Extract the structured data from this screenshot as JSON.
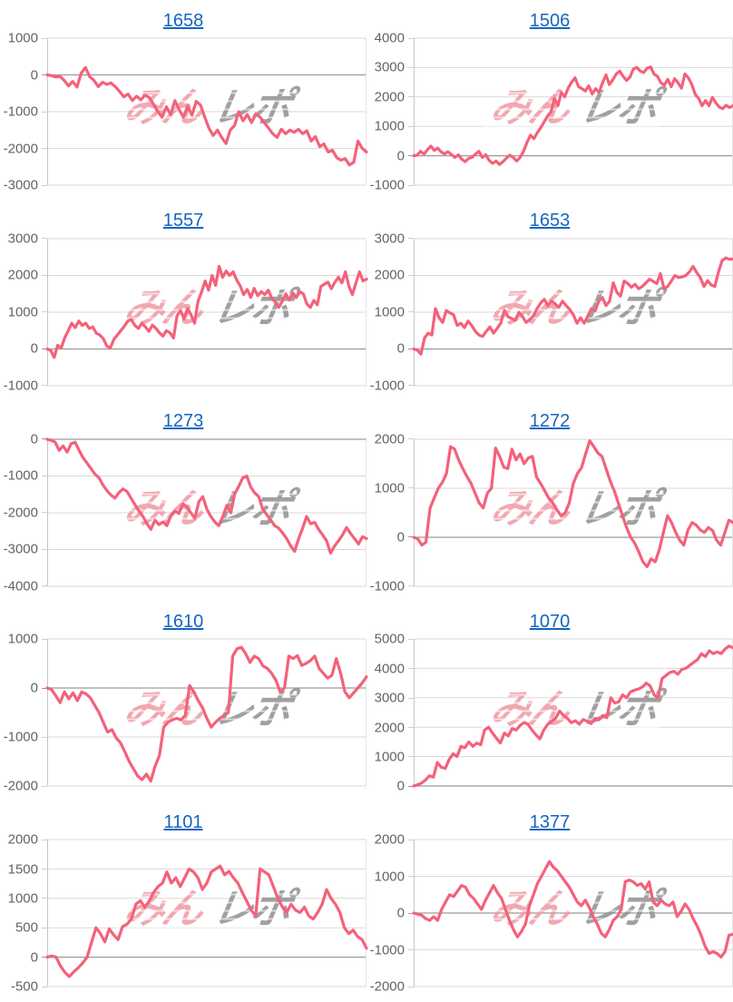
{
  "watermark": {
    "pink_text": "みん",
    "gray_text": "レポ"
  },
  "style": {
    "line_color": "#F4617A",
    "title_color": "#1565C0",
    "axis_text_color": "#646464",
    "grid_color": "#D9D9D9",
    "zero_line_color": "#9A9A9A",
    "axis_line_color": "#C7C7C7",
    "right_border_color": "#E4E4E4"
  },
  "chart_data": [
    {
      "type": "line",
      "title": "1658",
      "ylim": [
        -3000,
        1000
      ],
      "yticks": [
        1000,
        0,
        -1000,
        -2000,
        -3000
      ],
      "values": [
        0,
        -20,
        -60,
        -40,
        -150,
        -300,
        -180,
        -330,
        50,
        200,
        -50,
        -150,
        -320,
        -200,
        -260,
        -220,
        -320,
        -450,
        -600,
        -520,
        -700,
        -580,
        -680,
        -550,
        -620,
        -800,
        -1000,
        -1150,
        -870,
        -1080,
        -700,
        -950,
        -1150,
        -850,
        -1100,
        -720,
        -820,
        -1150,
        -1450,
        -1650,
        -1500,
        -1700,
        -1870,
        -1500,
        -1380,
        -1000,
        -1250,
        -1080,
        -1300,
        -1060,
        -1150,
        -1300,
        -1450,
        -1600,
        -1700,
        -1480,
        -1600,
        -1500,
        -1560,
        -1480,
        -1600,
        -1520,
        -1800,
        -1680,
        -1950,
        -1880,
        -2100,
        -2050,
        -2250,
        -2320,
        -2280,
        -2450,
        -2380,
        -1800,
        -2000,
        -2100
      ]
    },
    {
      "type": "line",
      "title": "1506",
      "ylim": [
        -1000,
        4000
      ],
      "yticks": [
        4000,
        3000,
        2000,
        1000,
        0,
        -1000
      ],
      "values": [
        0,
        20,
        150,
        60,
        200,
        330,
        180,
        260,
        130,
        60,
        140,
        40,
        -60,
        30,
        -120,
        -200,
        -90,
        -60,
        60,
        150,
        -60,
        30,
        -160,
        -260,
        -180,
        -300,
        -200,
        -80,
        20,
        -60,
        -180,
        -60,
        150,
        450,
        700,
        580,
        780,
        950,
        1150,
        1350,
        1500,
        1950,
        1700,
        2150,
        2000,
        2300,
        2500,
        2650,
        2350,
        2280,
        2200,
        2380,
        2100,
        2280,
        2150,
        2480,
        2750,
        2420,
        2580,
        2780,
        2880,
        2700,
        2560,
        2680,
        2950,
        3000,
        2880,
        2830,
        2980,
        3020,
        2780,
        2700,
        2480,
        2400,
        2600,
        2350,
        2620,
        2480,
        2300,
        2780,
        2650,
        2420,
        2080,
        1950,
        1700,
        1880,
        1700,
        1980,
        1800,
        1650,
        1600,
        1720,
        1640,
        1700
      ]
    },
    {
      "type": "line",
      "title": "1557",
      "ylim": [
        -1000,
        3000
      ],
      "yticks": [
        3000,
        2000,
        1000,
        0,
        -1000
      ],
      "values": [
        0,
        -40,
        -230,
        100,
        30,
        300,
        500,
        700,
        580,
        760,
        640,
        700,
        560,
        600,
        430,
        380,
        280,
        80,
        30,
        260,
        380,
        500,
        620,
        760,
        800,
        640,
        560,
        700,
        600,
        480,
        650,
        560,
        440,
        350,
        500,
        440,
        300,
        900,
        1050,
        820,
        1100,
        930,
        700,
        1300,
        1550,
        1850,
        1600,
        2000,
        1730,
        2250,
        1950,
        2120,
        2000,
        2100,
        1880,
        1720,
        1480,
        1620,
        1400,
        1650,
        1450,
        1560,
        1480,
        1600,
        1380,
        1280,
        1130,
        1300,
        1500,
        1330,
        1520,
        1400,
        1560,
        1500,
        1230,
        1130,
        1320,
        1200,
        1700,
        1760,
        1820,
        1640,
        1820,
        1950,
        1800,
        2100,
        1700,
        1480,
        1800,
        2100,
        1850,
        1900
      ]
    },
    {
      "type": "line",
      "title": "1653",
      "ylim": [
        -1000,
        3000
      ],
      "yticks": [
        3000,
        2000,
        1000,
        0,
        -1000
      ],
      "values": [
        0,
        -30,
        -140,
        300,
        430,
        380,
        1100,
        850,
        720,
        1050,
        980,
        930,
        640,
        700,
        580,
        760,
        640,
        480,
        380,
        340,
        480,
        600,
        430,
        560,
        700,
        1050,
        880,
        830,
        780,
        1000,
        880,
        720,
        800,
        900,
        1100,
        1250,
        1350,
        1180,
        1300,
        1230,
        1130,
        1300,
        1180,
        1080,
        930,
        700,
        850,
        700,
        900,
        1100,
        1040,
        1300,
        1400,
        1180,
        1300,
        1800,
        1540,
        1440,
        1850,
        1780,
        1680,
        1760,
        1640,
        1700,
        1800,
        1900,
        1840,
        1780,
        2050,
        1640,
        1700,
        1850,
        2000,
        1940,
        1960,
        2000,
        2100,
        2250,
        2080,
        1940,
        1700,
        1860,
        1740,
        1700,
        2100,
        2400,
        2480,
        2440,
        2450
      ]
    },
    {
      "type": "line",
      "title": "1273",
      "ylim": [
        -4000,
        0
      ],
      "yticks": [
        0,
        -1000,
        -2000,
        -3000,
        -4000
      ],
      "values": [
        0,
        -30,
        -80,
        -300,
        -180,
        -350,
        -120,
        -80,
        -300,
        -500,
        -650,
        -800,
        -950,
        -1050,
        -1250,
        -1400,
        -1520,
        -1600,
        -1450,
        -1350,
        -1420,
        -1600,
        -1780,
        -1950,
        -2100,
        -2300,
        -2450,
        -2200,
        -2320,
        -2250,
        -2350,
        -2080,
        -1950,
        -2020,
        -1750,
        -1850,
        -2000,
        -2150,
        -1700,
        -1560,
        -1900,
        -2100,
        -2250,
        -2350,
        -2100,
        -1800,
        -2000,
        -1480,
        -1280,
        -1050,
        -1000,
        -1300,
        -1460,
        -1560,
        -1900,
        -2050,
        -2200,
        -2350,
        -2420,
        -2550,
        -2700,
        -2900,
        -3050,
        -2700,
        -2420,
        -2100,
        -2300,
        -2260,
        -2450,
        -2600,
        -2760,
        -3100,
        -2900,
        -2760,
        -2600,
        -2400,
        -2560,
        -2700,
        -2850,
        -2650,
        -2700
      ]
    },
    {
      "type": "line",
      "title": "1272",
      "ylim": [
        -1000,
        2000
      ],
      "yticks": [
        2000,
        1000,
        0,
        -1000
      ],
      "values": [
        0,
        -30,
        -160,
        -100,
        600,
        800,
        1000,
        1120,
        1300,
        1850,
        1800,
        1580,
        1400,
        1240,
        1100,
        900,
        700,
        600,
        900,
        1000,
        1820,
        1650,
        1430,
        1400,
        1800,
        1580,
        1700,
        1500,
        1620,
        1650,
        1230,
        1100,
        950,
        800,
        700,
        560,
        440,
        500,
        700,
        1100,
        1300,
        1420,
        1700,
        1970,
        1850,
        1720,
        1650,
        1400,
        1150,
        950,
        700,
        440,
        200,
        0,
        -120,
        -300,
        -500,
        -600,
        -440,
        -500,
        -250,
        100,
        440,
        300,
        100,
        -60,
        -160,
        150,
        300,
        250,
        150,
        100,
        200,
        140,
        -60,
        -160,
        100,
        350,
        300
      ]
    },
    {
      "type": "line",
      "title": "1610",
      "ylim": [
        -2000,
        1000
      ],
      "yticks": [
        1000,
        0,
        -1000,
        -2000
      ],
      "values": [
        0,
        -30,
        -160,
        -300,
        -80,
        -220,
        -100,
        -260,
        -80,
        -120,
        -200,
        -350,
        -500,
        -700,
        -900,
        -850,
        -1020,
        -1120,
        -1300,
        -1500,
        -1650,
        -1800,
        -1870,
        -1760,
        -1900,
        -1600,
        -1380,
        -800,
        -700,
        -650,
        -620,
        -650,
        -560,
        50,
        -80,
        -260,
        -400,
        -620,
        -800,
        -700,
        -620,
        -560,
        -500,
        650,
        800,
        830,
        700,
        520,
        650,
        600,
        450,
        400,
        300,
        160,
        -80,
        0,
        650,
        600,
        660,
        460,
        500,
        560,
        650,
        400,
        300,
        200,
        260,
        600,
        300,
        -80,
        -200,
        -100,
        0,
        100,
        230
      ]
    },
    {
      "type": "line",
      "title": "1070",
      "ylim": [
        0,
        5000
      ],
      "yticks": [
        5000,
        4000,
        3000,
        2000,
        1000,
        0
      ],
      "values": [
        0,
        40,
        100,
        200,
        350,
        300,
        800,
        640,
        600,
        900,
        1100,
        1000,
        1350,
        1300,
        1500,
        1350,
        1460,
        1400,
        1900,
        2000,
        1800,
        1620,
        1460,
        1800,
        1700,
        1950,
        1900,
        2060,
        2160,
        2100,
        1900,
        1740,
        1600,
        1900,
        2100,
        2200,
        2300,
        2550,
        2400,
        2300,
        2150,
        2220,
        2100,
        2260,
        2200,
        2120,
        2300,
        2250,
        2400,
        2320,
        3000,
        2820,
        2860,
        3100,
        3000,
        3200,
        3260,
        3300,
        3360,
        3500,
        3400,
        3100,
        3000,
        3650,
        3760,
        3860,
        3900,
        3800,
        3960,
        4000,
        4100,
        4200,
        4300,
        4500,
        4400,
        4600,
        4500,
        4560,
        4500,
        4660,
        4760,
        4700
      ]
    },
    {
      "type": "line",
      "title": "1101",
      "ylim": [
        -500,
        2000
      ],
      "yticks": [
        2000,
        1500,
        1000,
        500,
        0,
        -500
      ],
      "values": [
        0,
        20,
        0,
        -150,
        -260,
        -330,
        -250,
        -180,
        -100,
        0,
        250,
        500,
        400,
        260,
        480,
        380,
        300,
        520,
        560,
        650,
        900,
        960,
        850,
        950,
        1100,
        1200,
        1260,
        1450,
        1260,
        1350,
        1200,
        1350,
        1500,
        1450,
        1350,
        1150,
        1260,
        1450,
        1500,
        1550,
        1400,
        1460,
        1350,
        1260,
        1100,
        950,
        800,
        700,
        1500,
        1450,
        1400,
        1200,
        1000,
        860,
        760,
        900,
        800,
        760,
        850,
        700,
        650,
        760,
        900,
        1150,
        1000,
        900,
        760,
        500,
        400,
        460,
        350,
        300,
        150
      ]
    },
    {
      "type": "line",
      "title": "1377",
      "ylim": [
        -2000,
        2000
      ],
      "yticks": [
        2000,
        1000,
        0,
        -1000,
        -2000
      ],
      "values": [
        0,
        -30,
        -60,
        -150,
        -200,
        -100,
        -200,
        100,
        300,
        500,
        450,
        600,
        750,
        700,
        500,
        400,
        250,
        100,
        350,
        550,
        750,
        550,
        400,
        100,
        -200,
        -450,
        -650,
        -500,
        -300,
        200,
        500,
        800,
        1000,
        1200,
        1400,
        1250,
        1150,
        1000,
        850,
        700,
        500,
        300,
        200,
        350,
        150,
        -100,
        -300,
        -550,
        -650,
        -450,
        -200,
        -100,
        100,
        850,
        900,
        850,
        750,
        800,
        650,
        850,
        300,
        200,
        350,
        250,
        200,
        300,
        -100,
        50,
        250,
        100,
        -150,
        -350,
        -600,
        -900,
        -1100,
        -1050,
        -1100,
        -1200,
        -1050,
        -600,
        -580
      ]
    }
  ]
}
